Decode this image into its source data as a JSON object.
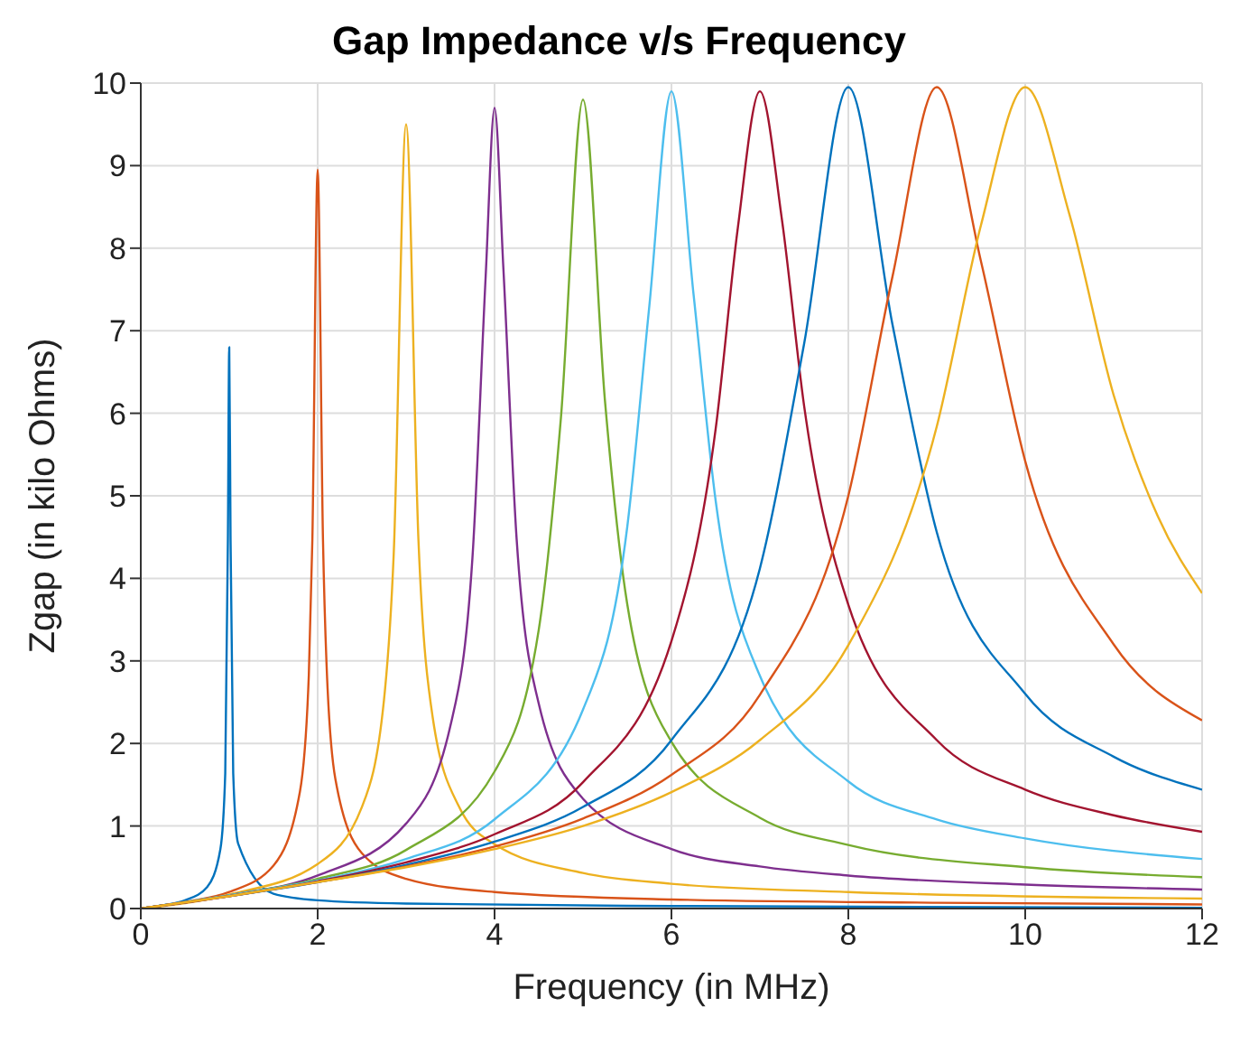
{
  "chart_data": {
    "type": "line",
    "title": "Gap Impedance v/s Frequency",
    "xlabel": "Frequency (in MHz)",
    "ylabel": "Zgap (in kilo Ohms)",
    "xlim": [
      0,
      12
    ],
    "ylim": [
      0,
      10
    ],
    "xticks": [
      0,
      2,
      4,
      6,
      8,
      10,
      12
    ],
    "yticks": [
      0,
      1,
      2,
      3,
      4,
      5,
      6,
      7,
      8,
      9,
      10
    ],
    "grid": true,
    "series": [
      {
        "color": "#0072bd",
        "x": [
          0,
          0.25,
          0.5,
          0.75,
          0.9,
          0.955,
          0.985,
          1,
          1.015,
          1.045,
          1.1,
          1.5,
          2,
          3,
          6,
          12
        ],
        "values": [
          0,
          0.04,
          0.1,
          0.26,
          0.72,
          1.64,
          4.47,
          6.8,
          4.47,
          1.64,
          0.79,
          0.18,
          0.1,
          0.06,
          0.03,
          0.01
        ]
      },
      {
        "color": "#d95319",
        "x": [
          0,
          0.5,
          1,
          1.5,
          1.8,
          1.9,
          1.94,
          2,
          2.06,
          2.1,
          2.2,
          2.5,
          3,
          4,
          6,
          9,
          12
        ],
        "values": [
          0,
          0.08,
          0.2,
          0.52,
          1.42,
          2.83,
          4.47,
          8.95,
          4.47,
          2.97,
          1.57,
          0.67,
          0.36,
          0.2,
          0.11,
          0.07,
          0.05
        ]
      },
      {
        "color": "#edb120",
        "x": [
          0,
          1,
          2,
          2.5,
          2.75,
          2.86,
          3,
          3.14,
          3.3,
          3.6,
          4,
          5,
          6,
          8,
          12
        ],
        "values": [
          0,
          0.17,
          0.54,
          1.23,
          2.53,
          4.3,
          9.5,
          4.45,
          2.32,
          1.23,
          0.78,
          0.43,
          0.3,
          0.2,
          0.12
        ]
      },
      {
        "color": "#7e2f8e",
        "x": [
          0,
          1,
          2,
          3,
          3.5,
          3.75,
          3.9,
          4,
          4.1,
          4.25,
          4.5,
          5,
          6,
          7,
          8,
          10,
          12
        ],
        "values": [
          0,
          0.16,
          0.4,
          1.03,
          2.21,
          4.25,
          7.67,
          9.7,
          7.75,
          4.47,
          2.48,
          1.33,
          0.72,
          0.51,
          0.4,
          0.29,
          0.23
        ]
      },
      {
        "color": "#77ac30",
        "x": [
          0,
          1,
          2,
          3,
          4,
          4.5,
          4.75,
          5,
          5.25,
          5.5,
          6,
          7,
          8,
          10,
          12
        ],
        "values": [
          0,
          0.16,
          0.36,
          0.71,
          1.66,
          3.38,
          5.94,
          9.8,
          6.13,
          3.69,
          2.02,
          1.1,
          0.77,
          0.5,
          0.38
        ]
      },
      {
        "color": "#4dbeee",
        "x": [
          0,
          1,
          2,
          3,
          4,
          5,
          5.5,
          5.75,
          6,
          6.25,
          6.5,
          7,
          8,
          9,
          10,
          12
        ],
        "values": [
          0,
          0.16,
          0.34,
          0.6,
          1.08,
          2.41,
          4.62,
          7.3,
          9.9,
          7.44,
          4.94,
          2.82,
          1.54,
          1.08,
          0.85,
          0.6
        ]
      },
      {
        "color": "#a2142f",
        "x": [
          0,
          1,
          2,
          3,
          4,
          5,
          6,
          6.5,
          6.75,
          7,
          7.25,
          7.5,
          8,
          9,
          10,
          11,
          12
        ],
        "values": [
          0,
          0.15,
          0.33,
          0.56,
          0.9,
          1.53,
          3.24,
          5.81,
          8.24,
          9.9,
          8.34,
          6.09,
          3.68,
          2.04,
          1.44,
          1.13,
          0.93
        ]
      },
      {
        "color": "#0072bd",
        "x": [
          0,
          1,
          2,
          3,
          4,
          5,
          6,
          7,
          7.5,
          8,
          8.5,
          9,
          10,
          11,
          12
        ],
        "values": [
          0,
          0.15,
          0.32,
          0.53,
          0.81,
          1.23,
          2.04,
          4.12,
          6.84,
          9.95,
          7.07,
          4.56,
          2.6,
          1.84,
          1.44
        ]
      },
      {
        "color": "#d95319",
        "x": [
          0,
          1,
          2,
          3,
          4,
          5,
          6,
          7,
          8,
          8.5,
          9,
          9.5,
          10,
          11,
          12
        ],
        "values": [
          0,
          0.15,
          0.32,
          0.51,
          0.75,
          1.09,
          1.62,
          2.59,
          5,
          7.66,
          9.95,
          7.84,
          5.42,
          3.2,
          2.28
        ]
      },
      {
        "color": "#edb120",
        "x": [
          0,
          1,
          2,
          3,
          4,
          5,
          6,
          7,
          8,
          9,
          9.5,
          10,
          10.5,
          11,
          11.5,
          12
        ],
        "values": [
          0,
          0.15,
          0.32,
          0.5,
          0.72,
          1,
          1.41,
          2.04,
          3.19,
          5.84,
          8.28,
          9.95,
          8.41,
          6.22,
          4.75,
          3.82
        ]
      }
    ]
  }
}
